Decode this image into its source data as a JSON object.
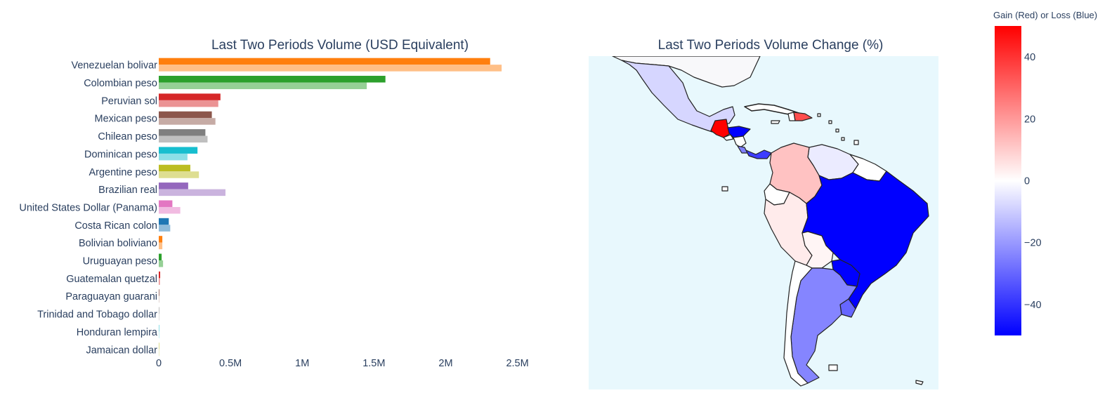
{
  "chart_data": [
    {
      "type": "bar",
      "orientation": "horizontal",
      "title": "Last Two Periods Volume (USD Equivalent)",
      "xlabel": "",
      "ylabel": "",
      "xlim": [
        0,
        2600000
      ],
      "x_ticks": [
        {
          "value": 0,
          "label": "0"
        },
        {
          "value": 500000,
          "label": "0.5M"
        },
        {
          "value": 1000000,
          "label": "1M"
        },
        {
          "value": 1500000,
          "label": "1.5M"
        },
        {
          "value": 2000000,
          "label": "2M"
        },
        {
          "value": 2500000,
          "label": "2.5M"
        }
      ],
      "grid": false,
      "categories": [
        "Venezuelan bolivar",
        "Colombian peso",
        "Peruvian sol",
        "Mexican peso",
        "Chilean peso",
        "Dominican peso",
        "Argentine peso",
        "Brazilian real",
        "United States Dollar (Panama)",
        "Costa Rican colon",
        "Bolivian boliviano",
        "Uruguayan peso",
        "Guatemalan quetzal",
        "Paraguayan guarani",
        "Trinidad and Tobago dollar",
        "Honduran lempira",
        "Jamaican dollar"
      ],
      "colors": [
        "#ff7f0e",
        "#2ca02c",
        "#d62728",
        "#8c564b",
        "#7f7f7f",
        "#17becf",
        "#bcbd22",
        "#9467bd",
        "#e377c2",
        "#1f77b4",
        "#ff7f0e",
        "#2ca02c",
        "#d62728",
        "#8c564b",
        "#7f7f7f",
        "#17becf",
        "#bcbd22"
      ],
      "series": [
        {
          "values": [
            2310000,
            1580000,
            430000,
            370000,
            325000,
            270000,
            220000,
            205000,
            95000,
            70000,
            25000,
            20000,
            10000,
            4000,
            1500,
            1000,
            500
          ]
        },
        {
          "values": [
            2390000,
            1450000,
            415000,
            395000,
            340000,
            200000,
            280000,
            465000,
            150000,
            80000,
            25000,
            30000,
            8000,
            2000,
            1000,
            500,
            500
          ]
        }
      ]
    },
    {
      "type": "choropleth",
      "title": "Last Two Periods Volume Change (%)",
      "colorbar": {
        "title": "Gain (Red) or Loss (Blue)",
        "range": [
          -50,
          50
        ],
        "ticks": [
          40,
          20,
          0,
          -20,
          -40
        ],
        "colorscale": [
          "#0000ff",
          "#ffffff",
          "#ff0000"
        ]
      },
      "map_background": "#e8f8fd",
      "regions": [
        {
          "name": "Mexico",
          "value": -8
        },
        {
          "name": "Guatemala",
          "value": 50
        },
        {
          "name": "Honduras",
          "value": -50
        },
        {
          "name": "El Salvador",
          "value": 0
        },
        {
          "name": "Nicaragua",
          "value": 0
        },
        {
          "name": "Costa Rica",
          "value": -25
        },
        {
          "name": "Panama",
          "value": -38
        },
        {
          "name": "Dominican Republic",
          "value": 35
        },
        {
          "name": "Jamaica",
          "value": 0
        },
        {
          "name": "Trinidad and Tobago",
          "value": 0
        },
        {
          "name": "Colombia",
          "value": 12
        },
        {
          "name": "Venezuela",
          "value": -4
        },
        {
          "name": "Ecuador",
          "value": 0
        },
        {
          "name": "Peru",
          "value": 4
        },
        {
          "name": "Bolivia",
          "value": 2
        },
        {
          "name": "Brazil",
          "value": -50
        },
        {
          "name": "Paraguay",
          "value": -50
        },
        {
          "name": "Uruguay",
          "value": -30
        },
        {
          "name": "Argentina",
          "value": -24
        },
        {
          "name": "Chile",
          "value": 0
        }
      ]
    }
  ]
}
